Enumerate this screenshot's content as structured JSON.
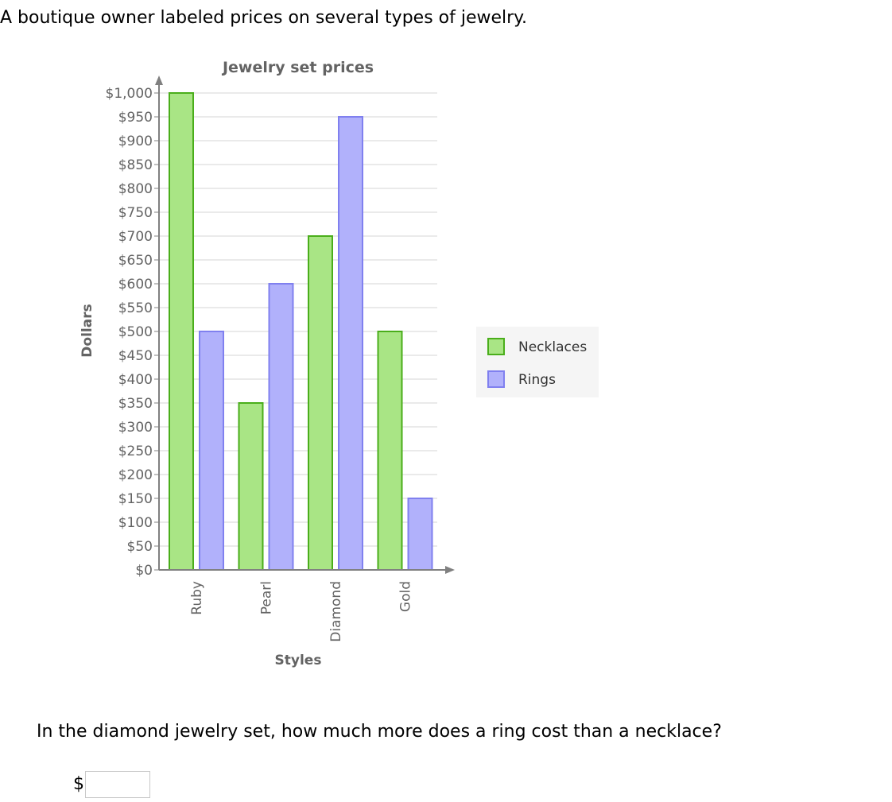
{
  "intro_text": "A boutique owner labeled prices on several types of jewelry.",
  "question_text": "In the diamond jewelry set, how much more does a ring cost than a necklace?",
  "answer": {
    "currency_symbol": "$",
    "value": ""
  },
  "colors": {
    "necklaces_fill": "#a9e585",
    "necklaces_stroke": "#4aae1b",
    "rings_fill": "#b1b1fb",
    "rings_stroke": "#8080ef",
    "grid": "#d6d6d6",
    "axis": "#808080",
    "label_text": "#636363",
    "legend_bg": "#f5f5f5"
  },
  "chart_data": {
    "type": "bar",
    "title": "Jewelry set prices",
    "xlabel": "Styles",
    "ylabel": "Dollars",
    "categories": [
      "Ruby",
      "Pearl",
      "Diamond",
      "Gold"
    ],
    "series": [
      {
        "name": "Necklaces",
        "values": [
          1000,
          350,
          700,
          500
        ]
      },
      {
        "name": "Rings",
        "values": [
          500,
          600,
          950,
          150
        ]
      }
    ],
    "ylim": [
      0,
      1000
    ],
    "ytick_step": 50,
    "ytick_labels": [
      "$0",
      "$50",
      "$100",
      "$150",
      "$200",
      "$250",
      "$300",
      "$350",
      "$400",
      "$450",
      "$500",
      "$550",
      "$600",
      "$650",
      "$700",
      "$750",
      "$800",
      "$850",
      "$900",
      "$950",
      "$1,000"
    ],
    "grid": true,
    "legend_position": "right"
  }
}
